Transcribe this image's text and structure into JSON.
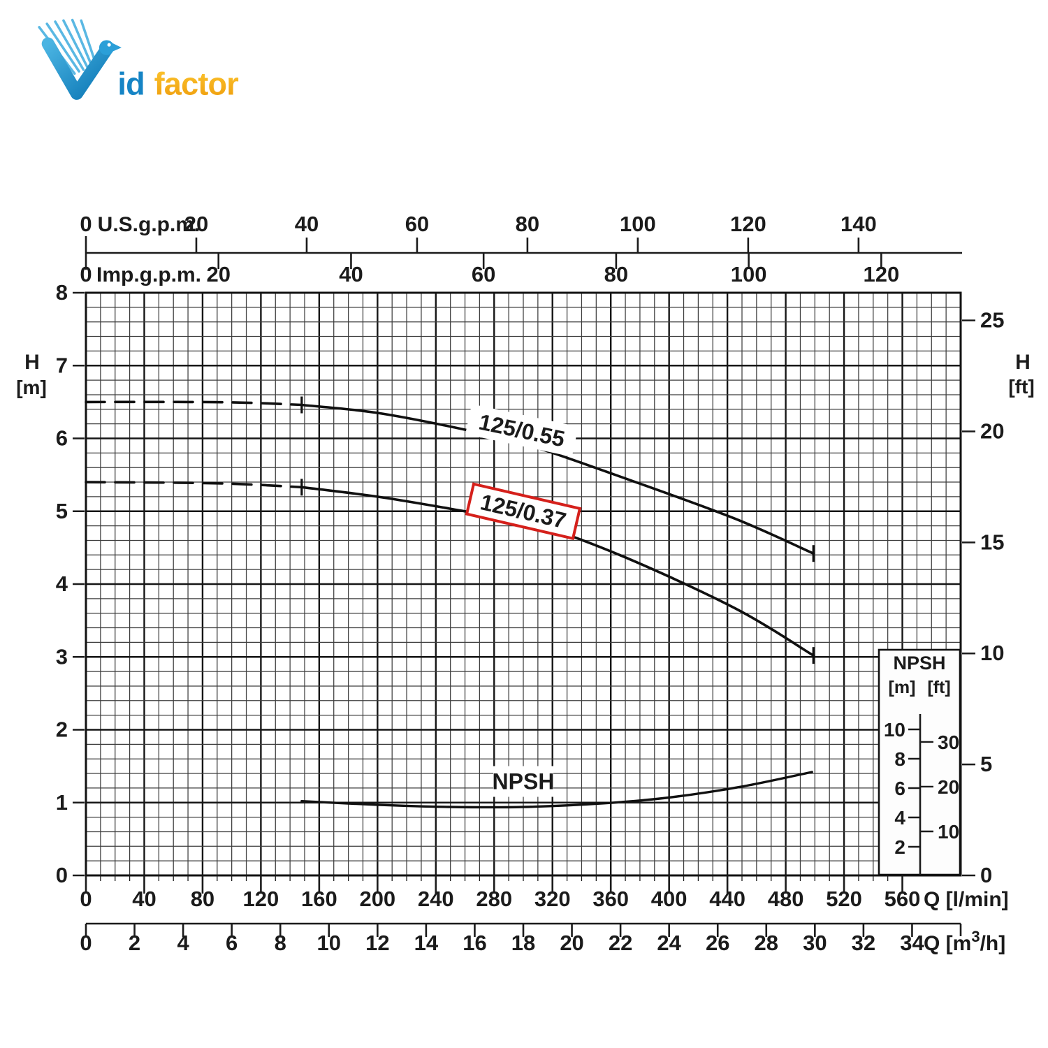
{
  "logo": {
    "id_text": "id",
    "factor_text": "factor",
    "blue": "#1584c5",
    "blue_light": "#49b1e0",
    "orange_top": "#fdc832",
    "orange_bottom": "#ee9b0a"
  },
  "chart_data": {
    "type": "line",
    "title": "",
    "ink_color": "#1b1b1b",
    "curve_color": "#101010",
    "highlight_box_color": "#d5201b",
    "axes": {
      "top_us": {
        "label": "U.S.g.p.m.",
        "ticks": [
          0,
          20,
          40,
          60,
          80,
          100,
          120,
          140
        ]
      },
      "top_imp": {
        "label": "Imp.g.p.m.",
        "ticks": [
          0,
          20,
          40,
          60,
          80,
          100,
          120
        ]
      },
      "left": {
        "label": "H",
        "unit": "[m]",
        "ticks": [
          0,
          1,
          2,
          3,
          4,
          5,
          6,
          7,
          8
        ],
        "range": [
          0,
          8
        ]
      },
      "right": {
        "label": "H",
        "unit": "[ft]",
        "ticks": [
          0,
          5,
          10,
          15,
          20,
          25
        ],
        "range": [
          0,
          26
        ]
      },
      "bottom_lmin": {
        "label": "Q [l/min]",
        "ticks": [
          0,
          40,
          80,
          120,
          160,
          200,
          240,
          280,
          320,
          360,
          400,
          440,
          480,
          520,
          560
        ],
        "range": [
          0,
          600
        ]
      },
      "bottom_m3h": {
        "label_pre": "Q [m",
        "label_sup": "3",
        "label_post": "/h]",
        "ticks": [
          0,
          2,
          4,
          6,
          8,
          10,
          12,
          14,
          16,
          18,
          20,
          22,
          24,
          26,
          28,
          30,
          32,
          34
        ],
        "range": [
          0,
          36
        ]
      }
    },
    "grid": {
      "minor_lmin": 10,
      "major_lmin": 40,
      "minor_m": 0.2,
      "major_m": 1
    },
    "series": [
      {
        "name": "125/0.55",
        "dash_until_q": 148,
        "end_ticks": true,
        "points": [
          [
            0,
            6.5
          ],
          [
            70,
            6.5
          ],
          [
            110,
            6.49
          ],
          [
            148,
            6.46
          ],
          [
            200,
            6.35
          ],
          [
            260,
            6.12
          ],
          [
            305,
            5.9
          ],
          [
            370,
            5.45
          ],
          [
            445,
            4.9
          ],
          [
            499,
            4.42
          ]
        ],
        "label": {
          "text": "125/0.55",
          "q": 299,
          "h": 6.11,
          "angle": 12,
          "boxed": false
        }
      },
      {
        "name": "125/0.37",
        "dash_until_q": 148,
        "end_ticks": true,
        "points": [
          [
            0,
            5.4
          ],
          [
            70,
            5.39
          ],
          [
            110,
            5.37
          ],
          [
            148,
            5.33
          ],
          [
            200,
            5.2
          ],
          [
            260,
            5.0
          ],
          [
            305,
            4.84
          ],
          [
            366,
            4.4
          ],
          [
            445,
            3.67
          ],
          [
            499,
            3.02
          ]
        ],
        "label": {
          "text": "125/0.37",
          "q": 300,
          "h": 5.0,
          "angle": 13,
          "boxed": true
        }
      },
      {
        "name": "NPSH",
        "dash_until_q": null,
        "end_ticks": false,
        "points": [
          [
            148,
            1.02
          ],
          [
            200,
            0.97
          ],
          [
            250,
            0.94
          ],
          [
            300,
            0.94
          ],
          [
            355,
            0.99
          ],
          [
            400,
            1.07
          ],
          [
            450,
            1.22
          ],
          [
            498,
            1.42
          ]
        ],
        "label": {
          "text": "NPSH",
          "q": 300,
          "h": 1.29,
          "angle": 0,
          "boxed": false
        }
      }
    ],
    "npsh_inset": {
      "title": "NPSH",
      "m_label": "[m]",
      "ft_label": "[ft]",
      "m_ticks": [
        2,
        4,
        6,
        8,
        10
      ],
      "ft_ticks": [
        10,
        20,
        30
      ]
    }
  }
}
